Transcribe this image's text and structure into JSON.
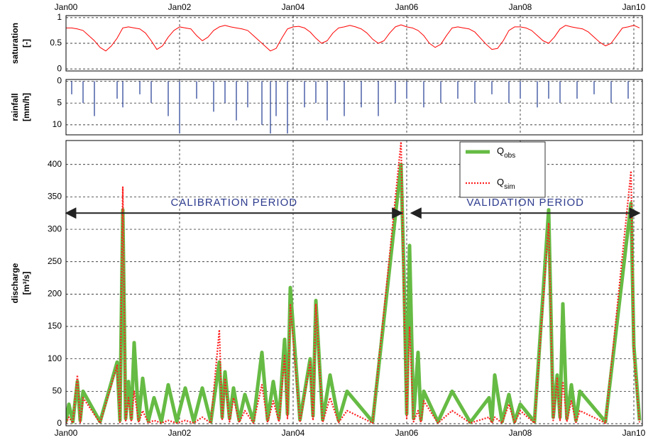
{
  "chart_data": [
    {
      "type": "line",
      "ylabel": [
        "saturation",
        "[-]"
      ],
      "color": "#ff0000",
      "xlim": [
        0,
        10.15
      ],
      "ylim": [
        -0.04,
        1.04
      ],
      "yticks": [
        0,
        0.5,
        1
      ],
      "grid": true,
      "xtick_labels": "top",
      "xticks": [
        {
          "value": 0,
          "label": "Jan00"
        },
        {
          "value": 2,
          "label": "Jan02"
        },
        {
          "value": 4,
          "label": "Jan04"
        },
        {
          "value": 6,
          "label": "Jan06"
        },
        {
          "value": 8,
          "label": "Jan08"
        },
        {
          "value": 10,
          "label": "Jan10"
        }
      ],
      "x": [
        0,
        0.1,
        0.2,
        0.3,
        0.4,
        0.5,
        0.6,
        0.7,
        0.8,
        0.9,
        1,
        1.1,
        1.2,
        1.3,
        1.4,
        1.5,
        1.6,
        1.7,
        1.8,
        1.9,
        2,
        2.1,
        2.2,
        2.3,
        2.4,
        2.5,
        2.6,
        2.7,
        2.8,
        2.9,
        3,
        3.1,
        3.2,
        3.3,
        3.4,
        3.5,
        3.6,
        3.7,
        3.8,
        3.9,
        4,
        4.1,
        4.2,
        4.3,
        4.4,
        4.5,
        4.6,
        4.7,
        4.8,
        4.9,
        5,
        5.1,
        5.2,
        5.3,
        5.4,
        5.5,
        5.6,
        5.7,
        5.8,
        5.9,
        6,
        6.1,
        6.2,
        6.3,
        6.4,
        6.5,
        6.6,
        6.7,
        6.8,
        6.9,
        7,
        7.1,
        7.2,
        7.3,
        7.4,
        7.5,
        7.6,
        7.7,
        7.8,
        7.9,
        8,
        8.1,
        8.2,
        8.3,
        8.4,
        8.5,
        8.6,
        8.7,
        8.8,
        8.9,
        9,
        9.1,
        9.2,
        9.3,
        9.4,
        9.5,
        9.6,
        9.7,
        9.8,
        9.9,
        10,
        10.1
      ],
      "values": [
        0.8,
        0.8,
        0.78,
        0.75,
        0.65,
        0.55,
        0.42,
        0.35,
        0.45,
        0.6,
        0.8,
        0.82,
        0.8,
        0.78,
        0.7,
        0.55,
        0.38,
        0.45,
        0.62,
        0.75,
        0.82,
        0.8,
        0.78,
        0.65,
        0.55,
        0.62,
        0.75,
        0.82,
        0.85,
        0.82,
        0.8,
        0.78,
        0.75,
        0.65,
        0.55,
        0.45,
        0.35,
        0.4,
        0.6,
        0.78,
        0.82,
        0.83,
        0.8,
        0.72,
        0.6,
        0.5,
        0.55,
        0.7,
        0.8,
        0.82,
        0.85,
        0.82,
        0.78,
        0.7,
        0.58,
        0.5,
        0.55,
        0.7,
        0.82,
        0.86,
        0.82,
        0.8,
        0.75,
        0.65,
        0.5,
        0.42,
        0.48,
        0.65,
        0.8,
        0.82,
        0.8,
        0.78,
        0.72,
        0.6,
        0.48,
        0.38,
        0.4,
        0.55,
        0.75,
        0.82,
        0.82,
        0.8,
        0.75,
        0.65,
        0.55,
        0.5,
        0.62,
        0.78,
        0.85,
        0.82,
        0.8,
        0.78,
        0.72,
        0.62,
        0.52,
        0.45,
        0.5,
        0.65,
        0.8,
        0.82,
        0.85,
        0.8
      ]
    },
    {
      "type": "bar",
      "ylabel": [
        "rainfall",
        "[mm/h]"
      ],
      "color": "#1f3a93",
      "xlim": [
        0,
        10.15
      ],
      "ylim": [
        12.3,
        -0.4
      ],
      "yticks": [
        0,
        5,
        10
      ],
      "grid": true,
      "xtick_labels": "none",
      "xticks": [
        {
          "value": 0,
          "label": "Jan00"
        },
        {
          "value": 2,
          "label": "Jan02"
        },
        {
          "value": 4,
          "label": "Jan04"
        },
        {
          "value": 6,
          "label": "Jan06"
        },
        {
          "value": 8,
          "label": "Jan08"
        },
        {
          "value": 10,
          "label": "Jan10"
        }
      ],
      "x": [
        0.1,
        0.3,
        0.5,
        0.9,
        1,
        1.3,
        1.5,
        1.8,
        2,
        2.3,
        2.6,
        2.8,
        3,
        3.2,
        3.45,
        3.6,
        3.7,
        3.9,
        4.2,
        4.4,
        4.6,
        4.9,
        5.2,
        5.5,
        5.8,
        6,
        6.3,
        6.6,
        6.9,
        7.2,
        7.5,
        7.8,
        8,
        8.3,
        8.5,
        8.7,
        9,
        9.3,
        9.6,
        9.9
      ],
      "values": [
        3,
        5,
        8,
        4,
        6,
        3,
        5,
        8,
        12,
        4,
        7,
        5,
        9,
        6,
        10,
        12,
        8,
        12,
        6,
        5,
        9,
        8,
        6,
        8,
        5,
        4,
        6,
        5,
        4,
        5,
        3,
        5,
        4,
        6,
        4,
        5,
        4,
        3,
        5,
        4
      ]
    },
    {
      "type": "line",
      "ylabel": [
        "discharge",
        "[m³/s]"
      ],
      "xlim": [
        0,
        10.15
      ],
      "ylim": [
        -3.3,
        437
      ],
      "yticks": [
        0,
        50,
        100,
        150,
        200,
        250,
        300,
        350,
        400
      ],
      "grid": true,
      "xtick_labels": "bottom",
      "legend": "upper right",
      "xticks": [
        {
          "value": 0,
          "label": "Jan00"
        },
        {
          "value": 2,
          "label": "Jan02"
        },
        {
          "value": 4,
          "label": "Jan04"
        },
        {
          "value": 6,
          "label": "Jan06"
        },
        {
          "value": 8,
          "label": "Jan08"
        },
        {
          "value": 10,
          "label": "Jan10"
        }
      ],
      "x": [
        0,
        0.05,
        0.12,
        0.2,
        0.25,
        0.3,
        0.6,
        0.9,
        0.95,
        1,
        1.05,
        1.1,
        1.15,
        1.2,
        1.28,
        1.35,
        1.45,
        1.55,
        1.68,
        1.8,
        1.95,
        2.1,
        2.25,
        2.4,
        2.55,
        2.7,
        2.75,
        2.8,
        2.88,
        2.95,
        3.05,
        3.15,
        3.3,
        3.45,
        3.55,
        3.65,
        3.75,
        3.85,
        3.9,
        3.95,
        4.12,
        4.3,
        4.35,
        4.4,
        4.52,
        4.65,
        4.8,
        4.95,
        5.4,
        5.9,
        5.95,
        6,
        6.05,
        6.12,
        6.2,
        6.25,
        6.3,
        6.55,
        6.8,
        7.12,
        7.45,
        7.5,
        7.55,
        7.68,
        7.8,
        7.9,
        8,
        8.25,
        8.5,
        8.58,
        8.65,
        8.7,
        8.75,
        8.82,
        8.9,
        8.98,
        9.05,
        9.5,
        9.95,
        10,
        10.1
      ],
      "series": [
        {
          "name": "Q",
          "name_sub": "obs",
          "color": "#66bb44",
          "style": "solid",
          "values": [
            3,
            30,
            3,
            65,
            5,
            50,
            3,
            95,
            5,
            330,
            8,
            65,
            8,
            125,
            6,
            70,
            4,
            40,
            3,
            60,
            3,
            55,
            3,
            55,
            3,
            95,
            10,
            80,
            8,
            55,
            5,
            45,
            4,
            110,
            6,
            65,
            8,
            130,
            15,
            210,
            6,
            100,
            12,
            190,
            6,
            75,
            5,
            50,
            3,
            400,
            235,
            15,
            275,
            8,
            110,
            6,
            50,
            3,
            50,
            2,
            40,
            4,
            75,
            3,
            45,
            3,
            30,
            3,
            330,
            10,
            75,
            10,
            185,
            8,
            60,
            5,
            50,
            3,
            340,
            120,
            5
          ]
        },
        {
          "name": "Q",
          "name_sub": "sim",
          "color": "#ff2020",
          "style": "dotted",
          "values": [
            1,
            10,
            1,
            75,
            2,
            40,
            1,
            90,
            2,
            365,
            3,
            40,
            3,
            50,
            2,
            20,
            1,
            5,
            1,
            5,
            1,
            5,
            1,
            10,
            1,
            145,
            5,
            70,
            3,
            40,
            2,
            20,
            1,
            60,
            2,
            35,
            3,
            105,
            8,
            185,
            2,
            95,
            5,
            185,
            2,
            40,
            2,
            20,
            1,
            435,
            200,
            8,
            150,
            3,
            20,
            2,
            35,
            1,
            20,
            1,
            10,
            1,
            10,
            1,
            30,
            1,
            20,
            1,
            310,
            5,
            70,
            5,
            65,
            3,
            35,
            2,
            20,
            1,
            390,
            110,
            2
          ]
        }
      ],
      "annotations": [
        {
          "text": "CALIBRATION PERIOD",
          "x": [
            0,
            5.92
          ],
          "y": 325
        },
        {
          "text": "VALIDATION PERIOD",
          "x": [
            6.08,
            10.1
          ],
          "y": 325
        }
      ]
    }
  ]
}
